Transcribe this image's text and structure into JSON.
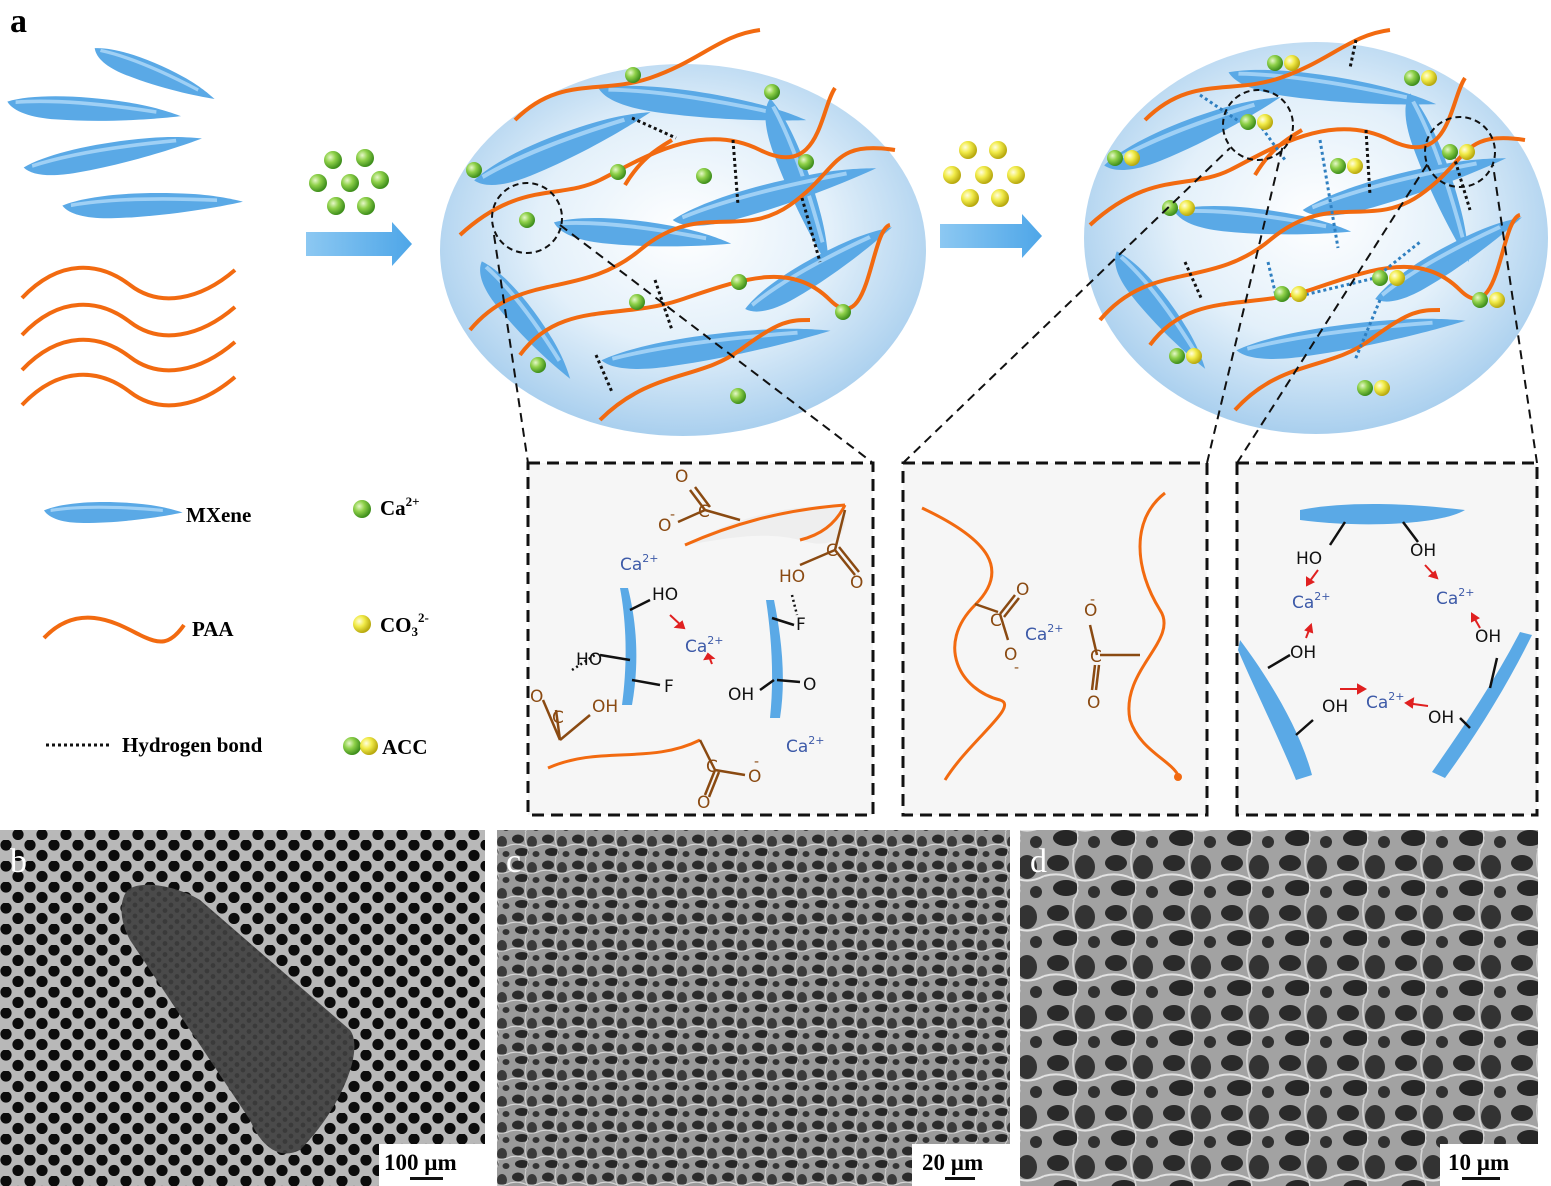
{
  "panels": {
    "a": "a",
    "b": "b",
    "c": "c",
    "d": "d"
  },
  "legend": {
    "mxene": "MXene",
    "paa": "PAA",
    "hbond": "Hydrogen bond",
    "ca_base": "Ca",
    "ca_sup": "2+",
    "co3_base": "CO",
    "co3_sub": "3",
    "co3_sup": "2-",
    "acc": "ACC"
  },
  "chem": {
    "ca": "Ca",
    "ca_sup": "2+",
    "ho": "HO",
    "oh": "OH",
    "o": "O",
    "c": "C",
    "f": "F",
    "minus": "-"
  },
  "scalebars": {
    "b": "100 µm",
    "c": "20 µm",
    "d": "10 µm"
  },
  "colors": {
    "mxene": "#5aa9e6",
    "paa": "#f26a10",
    "ca_ion": "#7cc83a",
    "co3_ion": "#e8e43a",
    "ion_label": "#3d5aa8",
    "carboxyl": "#8a4a12",
    "arrow_red": "#e02020",
    "hbond_blue": "#2f7fc0"
  }
}
